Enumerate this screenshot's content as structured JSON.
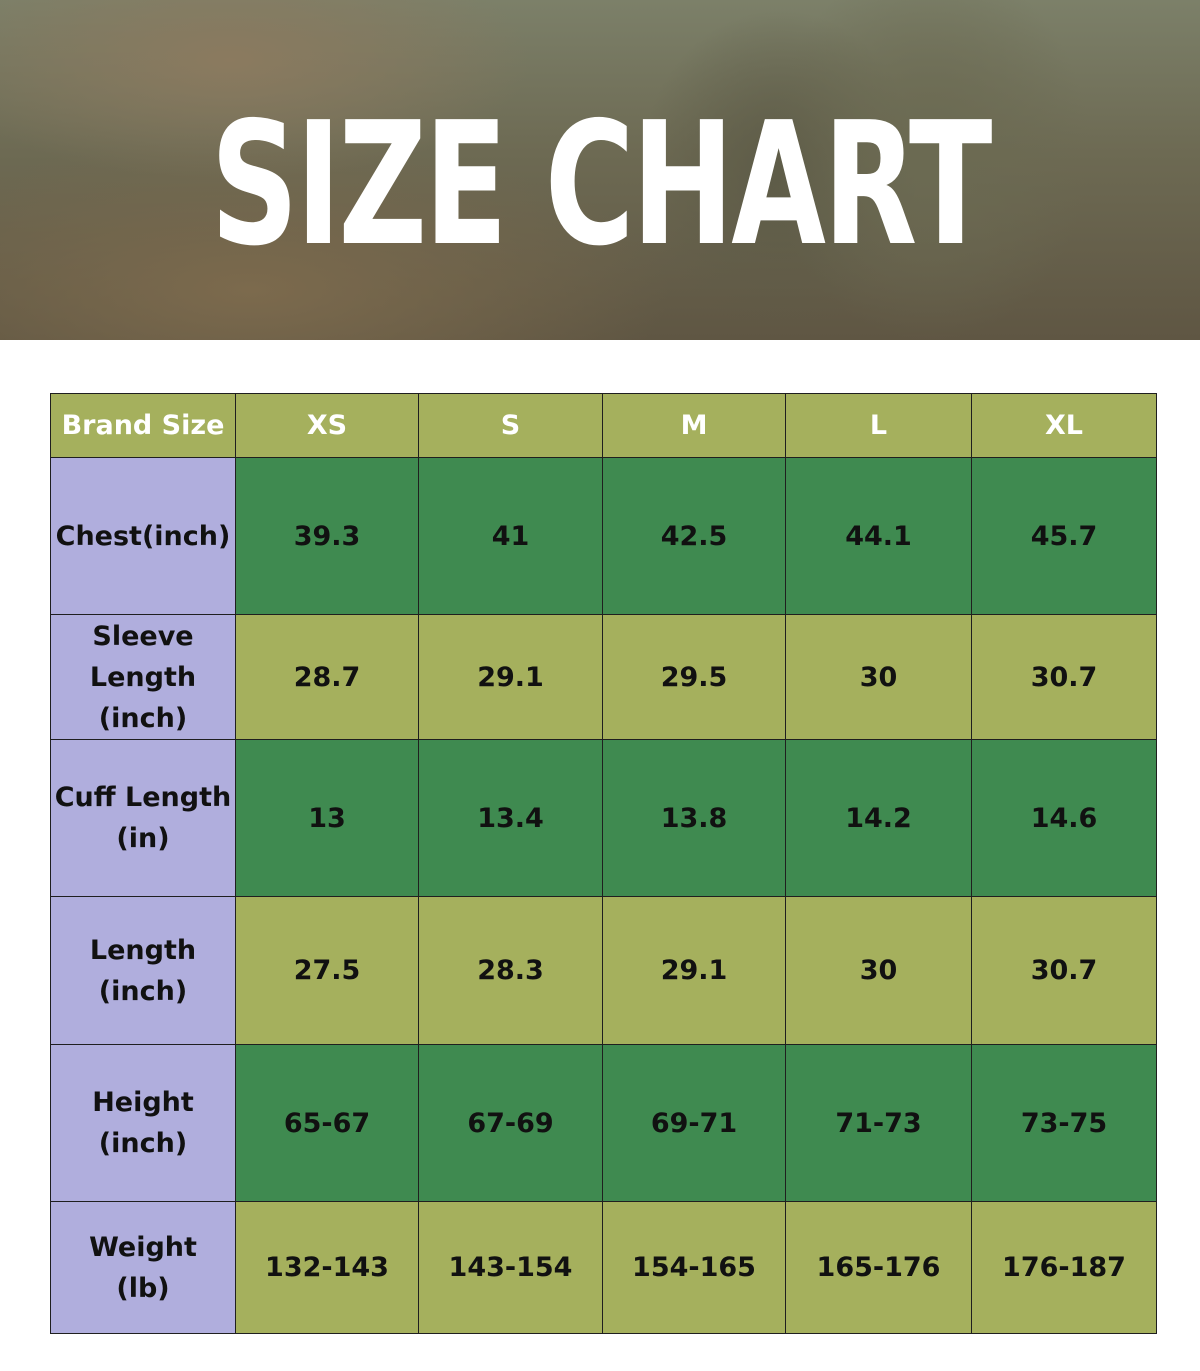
{
  "header": {
    "title": "SIZE CHART"
  },
  "table": {
    "columns": [
      "Brand Size",
      "XS",
      "S",
      "M",
      "L",
      "XL"
    ],
    "rows": [
      {
        "label": "Chest(inch)",
        "cells": [
          "39.3",
          "41",
          "42.5",
          "44.1",
          "45.7"
        ]
      },
      {
        "label": "Sleeve Length\n(inch)",
        "cells": [
          "28.7",
          "29.1",
          "29.5",
          "30",
          "30.7"
        ]
      },
      {
        "label": "Cuff Length\n(in)",
        "cells": [
          "13",
          "13.4",
          "13.8",
          "14.2",
          "14.6"
        ]
      },
      {
        "label": "Length\n(inch)",
        "cells": [
          "27.5",
          "28.3",
          "29.1",
          "30",
          "30.7"
        ]
      },
      {
        "label": "Height\n(inch)",
        "cells": [
          "65-67",
          "67-69",
          "69-71",
          "71-73",
          "73-75"
        ]
      },
      {
        "label": "Weight\n(lb)",
        "cells": [
          "132-143",
          "143-154",
          "154-165",
          "165-176",
          "176-187"
        ]
      }
    ]
  }
}
